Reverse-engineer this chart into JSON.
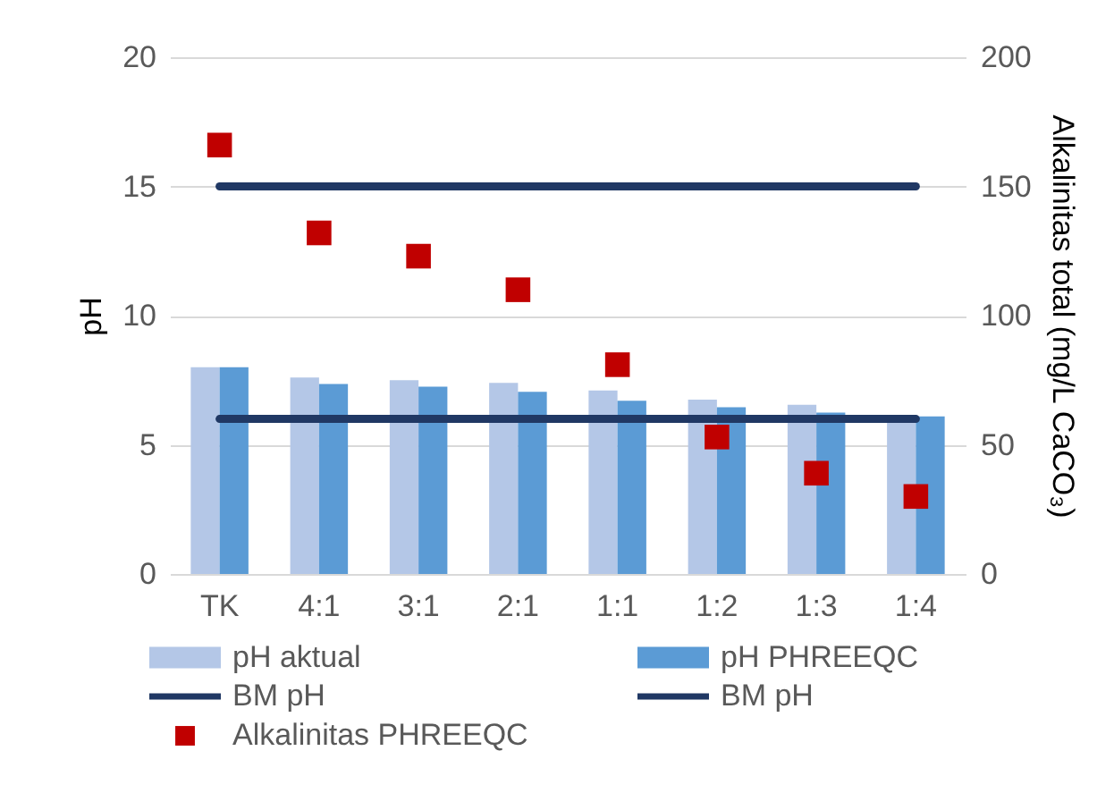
{
  "chart_data": {
    "type": "bar",
    "categories": [
      "TK",
      "4:1",
      "3:1",
      "2:1",
      "1:1",
      "1:2",
      "1:3",
      "1:4"
    ],
    "ylabel": "pH",
    "y2label": "Alkalinitas total (mg/L CaCO₃)",
    "ylim": [
      0,
      20
    ],
    "yticks": [
      0,
      5,
      10,
      15,
      20
    ],
    "y2lim": [
      0,
      200
    ],
    "y2ticks": [
      0,
      50,
      100,
      150,
      200
    ],
    "grid": "y",
    "legend": "bottom",
    "series": [
      {
        "name": "pH aktual",
        "color": "#b4c7e7",
        "values": [
          8.0,
          7.6,
          7.5,
          7.4,
          7.1,
          6.75,
          6.55,
          6.0
        ]
      },
      {
        "name": "pH PHREEQC",
        "color": "#5b9bd5",
        "values": [
          8.0,
          7.35,
          7.25,
          7.05,
          6.7,
          6.45,
          6.25,
          6.1
        ]
      },
      {
        "name": "BM pH",
        "type": "line",
        "color": "#203864",
        "values": [
          15,
          15,
          15,
          15,
          15,
          15,
          15,
          15
        ]
      },
      {
        "name": "BM pH",
        "type": "line",
        "color": "#203864",
        "values": [
          6,
          6,
          6,
          6,
          6,
          6,
          6,
          6
        ]
      },
      {
        "name": "Alkalinitas PHREEQC",
        "type": "scatter",
        "axis": "y2",
        "marker": "square",
        "color": "#c00000",
        "values": [
          166,
          132,
          123,
          110,
          81,
          53,
          39,
          30
        ]
      }
    ]
  }
}
